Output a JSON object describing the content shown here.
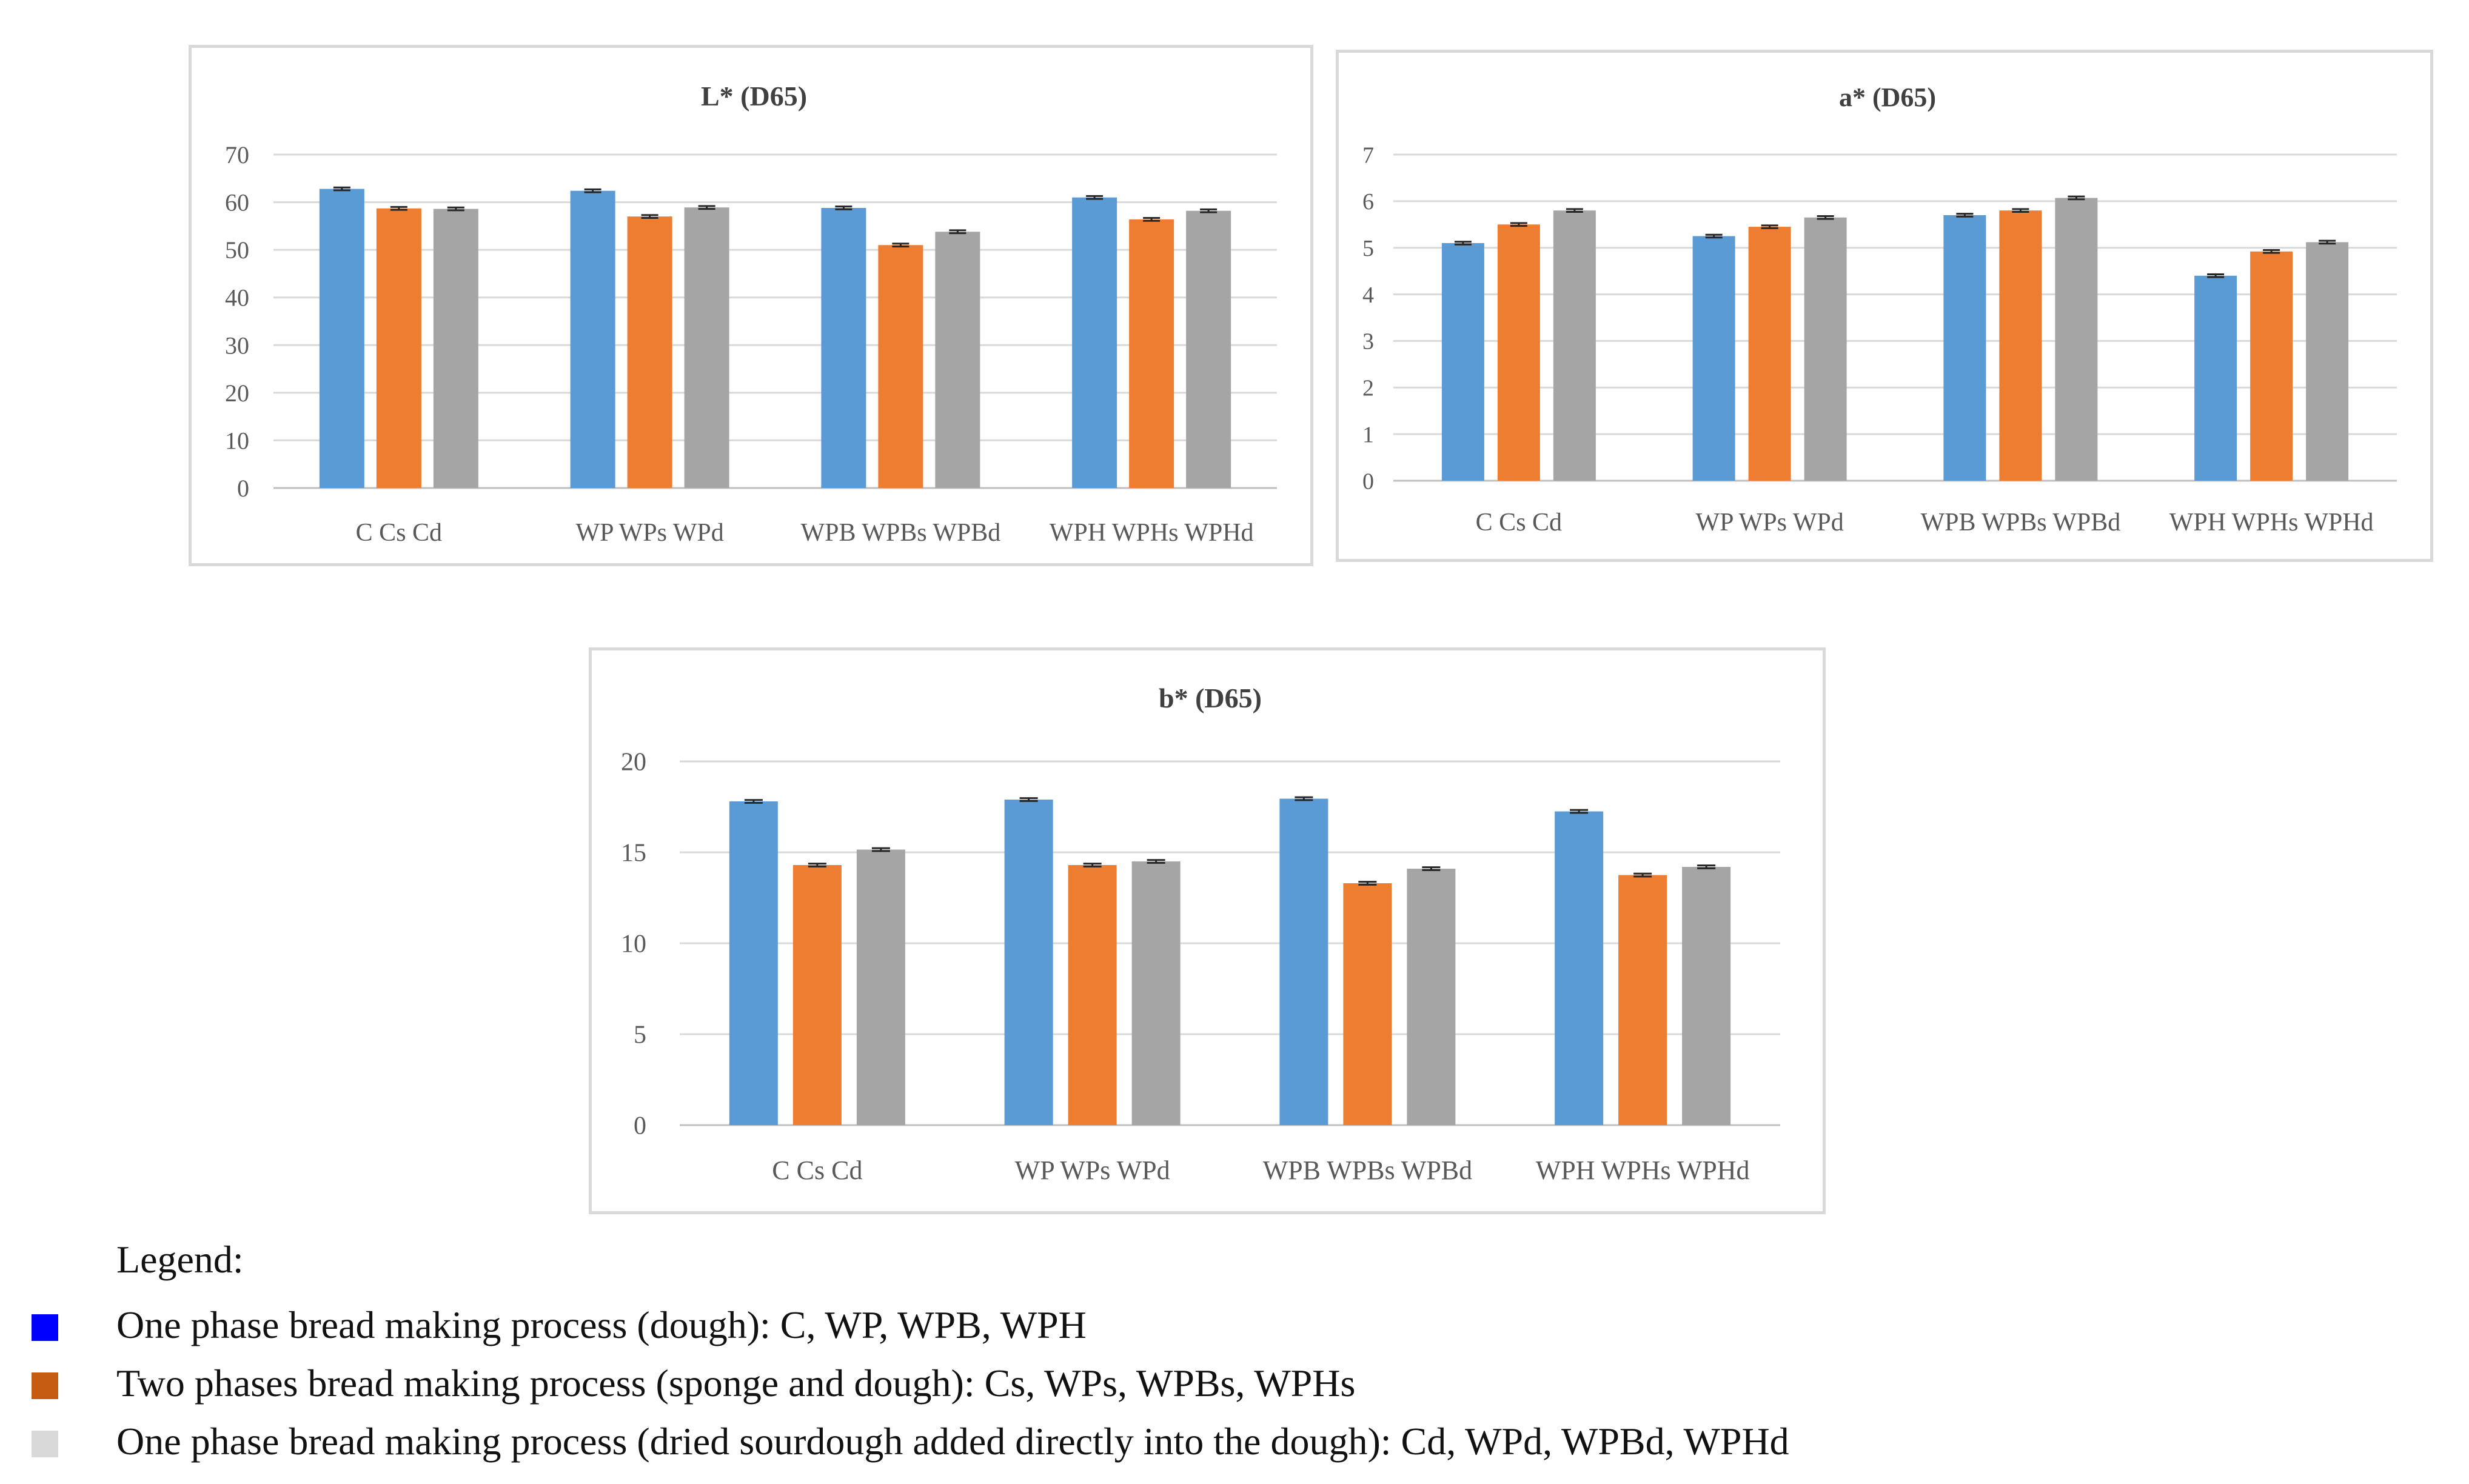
{
  "chart_data": [
    {
      "type": "bar",
      "title": "L* (D65)",
      "categories": [
        "C Cs Cd",
        "WP WPs WPd",
        "WPB WPBs WPBd",
        "WPH WPHs WPHd"
      ],
      "series": [
        {
          "name": "One phase bread making process (dough)",
          "color": "#5b9bd5",
          "values": [
            62.8,
            62.4,
            58.8,
            61.0
          ]
        },
        {
          "name": "Two phases bread making process (sponge and dough)",
          "color": "#ed7d31",
          "values": [
            58.7,
            57.0,
            51.0,
            56.4
          ]
        },
        {
          "name": "One phase bread making process (dried sourdough added directly into the dough)",
          "color": "#a5a5a5",
          "values": [
            58.6,
            58.9,
            53.8,
            58.2
          ]
        }
      ],
      "errors": [
        [
          0.3,
          0.3,
          0.3,
          0.3
        ],
        [
          0.3,
          0.3,
          0.3,
          0.3
        ],
        [
          0.3,
          0.3,
          0.3,
          0.3
        ]
      ],
      "yticks": [
        "0",
        "10",
        "20",
        "30",
        "40",
        "50",
        "60",
        "70"
      ],
      "ylim": [
        0,
        70
      ],
      "xlabel": "",
      "ylabel": "",
      "grid": true
    },
    {
      "type": "bar",
      "title": "a* (D65)",
      "categories": [
        "C Cs Cd",
        "WP WPs WPd",
        "WPB WPBs WPBd",
        "WPH WPHs WPHd"
      ],
      "series": [
        {
          "name": "One phase bread making process (dough)",
          "color": "#5b9bd5",
          "values": [
            5.1,
            5.25,
            5.7,
            4.4
          ]
        },
        {
          "name": "Two phases bread making process (sponge and dough)",
          "color": "#ed7d31",
          "values": [
            5.5,
            5.45,
            5.8,
            4.92
          ]
        },
        {
          "name": "One phase bread making process (dried sourdough added directly into the dough)",
          "color": "#a5a5a5",
          "values": [
            5.8,
            5.65,
            6.07,
            5.12
          ]
        }
      ],
      "errors": [
        [
          0.03,
          0.03,
          0.03,
          0.03
        ],
        [
          0.03,
          0.03,
          0.03,
          0.03
        ],
        [
          0.03,
          0.03,
          0.03,
          0.03
        ]
      ],
      "yticks": [
        "0",
        "1",
        "2",
        "3",
        "4",
        "5",
        "6",
        "7"
      ],
      "ylim": [
        0,
        7
      ],
      "xlabel": "",
      "ylabel": "",
      "grid": true
    },
    {
      "type": "bar",
      "title": "b* (D65)",
      "categories": [
        "C Cs Cd",
        "WP WPs WPd",
        "WPB WPBs WPBd",
        "WPH WPHs WPHd"
      ],
      "series": [
        {
          "name": "One phase bread making process (dough)",
          "color": "#5b9bd5",
          "values": [
            17.8,
            17.9,
            17.95,
            17.25
          ]
        },
        {
          "name": "Two phases bread making process (sponge and dough)",
          "color": "#ed7d31",
          "values": [
            14.3,
            14.3,
            13.3,
            13.75
          ]
        },
        {
          "name": "One phase bread making process (dried sourdough added directly into the dough)",
          "color": "#a5a5a5",
          "values": [
            15.15,
            14.5,
            14.1,
            14.2
          ]
        }
      ],
      "errors": [
        [
          0.08,
          0.08,
          0.08,
          0.08
        ],
        [
          0.08,
          0.08,
          0.08,
          0.08
        ],
        [
          0.08,
          0.08,
          0.08,
          0.08
        ]
      ],
      "yticks": [
        "0",
        "5",
        "10",
        "15",
        "20"
      ],
      "ylim": [
        0,
        20
      ],
      "xlabel": "",
      "ylabel": "",
      "grid": true
    }
  ],
  "legend": {
    "title": "Legend:",
    "items": [
      {
        "color": "#0000ff",
        "text": "One phase bread making process (dough): C, WP, WPB, WPH"
      },
      {
        "color": "#c55a11",
        "text": "Two phases bread making process (sponge and dough): Cs, WPs, WPBs, WPHs"
      },
      {
        "color": "#d9d9d9",
        "text": "One phase bread making process (dried sourdough added directly into the dough): Cd, WPd, WPBd, WPHd"
      }
    ]
  }
}
